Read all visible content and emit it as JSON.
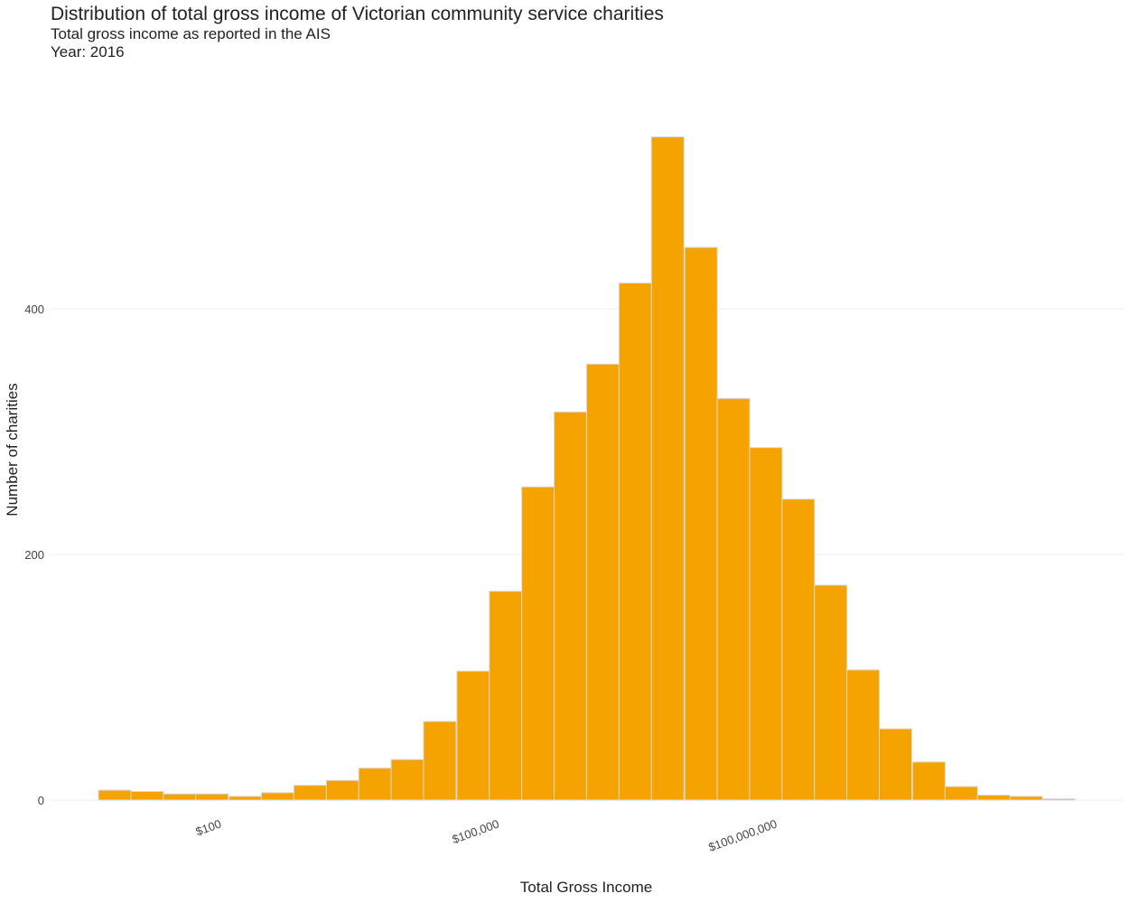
{
  "chart_data": {
    "type": "bar",
    "title": "Distribution of total gross income of Victorian community service charities",
    "subtitle_lines": [
      "Total gross income as reported in the AIS",
      "Year: 2016"
    ],
    "xlabel": "Total Gross Income",
    "ylabel": "Number of charities",
    "x_scale": "log10",
    "x_tick_labels": [
      {
        "value": 100,
        "label": "$100"
      },
      {
        "value": 100000,
        "label": "$100,000"
      },
      {
        "value": 100000000,
        "label": "$100,000,000"
      }
    ],
    "y_ticks": [
      0,
      200,
      400
    ],
    "ylim": [
      0,
      550
    ],
    "grid": true,
    "bar_color": "#f5a300",
    "bins": [
      {
        "log10_start": 0.68,
        "count": 8
      },
      {
        "log10_start": 1.03,
        "count": 7
      },
      {
        "log10_start": 1.38,
        "count": 5
      },
      {
        "log10_start": 1.73,
        "count": 5
      },
      {
        "log10_start": 2.09,
        "count": 3
      },
      {
        "log10_start": 2.44,
        "count": 6
      },
      {
        "log10_start": 2.79,
        "count": 12
      },
      {
        "log10_start": 3.14,
        "count": 16
      },
      {
        "log10_start": 3.49,
        "count": 26
      },
      {
        "log10_start": 3.84,
        "count": 33
      },
      {
        "log10_start": 4.19,
        "count": 64
      },
      {
        "log10_start": 4.55,
        "count": 105
      },
      {
        "log10_start": 4.9,
        "count": 170
      },
      {
        "log10_start": 5.25,
        "count": 255
      },
      {
        "log10_start": 5.6,
        "count": 316
      },
      {
        "log10_start": 5.95,
        "count": 355
      },
      {
        "log10_start": 6.3,
        "count": 421
      },
      {
        "log10_start": 6.65,
        "count": 540
      },
      {
        "log10_start": 7.01,
        "count": 450
      },
      {
        "log10_start": 7.36,
        "count": 327
      },
      {
        "log10_start": 7.71,
        "count": 287
      },
      {
        "log10_start": 8.06,
        "count": 245
      },
      {
        "log10_start": 8.41,
        "count": 175
      },
      {
        "log10_start": 8.76,
        "count": 106
      },
      {
        "log10_start": 9.11,
        "count": 58
      },
      {
        "log10_start": 9.47,
        "count": 31
      },
      {
        "log10_start": 9.82,
        "count": 11
      },
      {
        "log10_start": 10.17,
        "count": 4
      },
      {
        "log10_start": 10.52,
        "count": 3
      },
      {
        "log10_start": 10.87,
        "count": 1
      }
    ],
    "bin_width_log10": 0.3514
  }
}
